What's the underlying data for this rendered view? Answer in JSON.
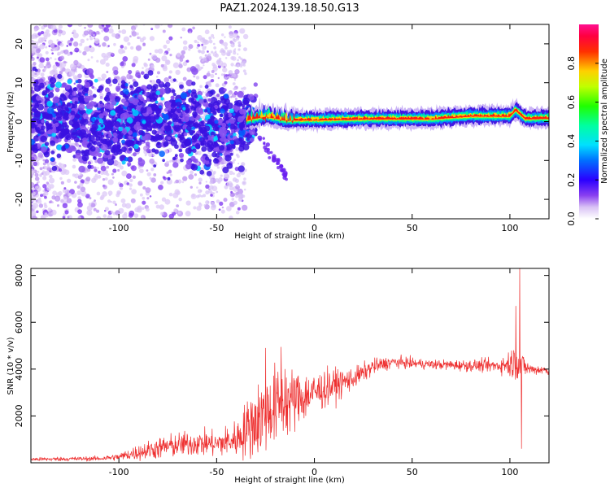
{
  "chart_data": [
    {
      "type": "heatmap",
      "title": "PAZ1.2024.139.18.50.G13",
      "xlabel": "Height of straight line (km)",
      "ylabel": "Frequency (Hz)",
      "xlim": [
        -145,
        120
      ],
      "ylim": [
        -25,
        25
      ],
      "x_ticks": [
        -100,
        -50,
        0,
        50,
        100
      ],
      "y_ticks": [
        -20,
        -10,
        0,
        10,
        20
      ],
      "colorbar": {
        "label": "Normalized spectral amplitude",
        "range": [
          0,
          1
        ],
        "ticks": [
          0.0,
          0.2,
          0.4,
          0.6,
          0.8
        ],
        "colormap": "rainbow"
      },
      "ridge": {
        "description_points": [
          {
            "x": -145,
            "y": 1.0
          },
          {
            "x": -120,
            "y": 0.5
          },
          {
            "x": -100,
            "y": 0.5
          },
          {
            "x": -85,
            "y": 1.5
          },
          {
            "x": -70,
            "y": 0.0
          },
          {
            "x": -55,
            "y": -1.5
          },
          {
            "x": -45,
            "y": -2.0
          },
          {
            "x": -35,
            "y": 0.5
          },
          {
            "x": -25,
            "y": 1.5
          },
          {
            "x": -15,
            "y": 0.5
          },
          {
            "x": 0,
            "y": 0.5
          },
          {
            "x": 30,
            "y": 0.8
          },
          {
            "x": 60,
            "y": 0.8
          },
          {
            "x": 80,
            "y": 1.5
          },
          {
            "x": 100,
            "y": 1.5
          },
          {
            "x": 103,
            "y": 3.0
          },
          {
            "x": 108,
            "y": 0.8
          },
          {
            "x": 120,
            "y": 1.0
          }
        ]
      }
    },
    {
      "type": "line",
      "xlabel": "Height of straight line (km)",
      "ylabel": "SNR (10 * v/v)",
      "xlim": [
        -145,
        120
      ],
      "ylim": [
        0,
        8300
      ],
      "x_ticks": [
        -100,
        -50,
        0,
        50,
        100
      ],
      "y_ticks": [
        2000,
        4000,
        6000,
        8000
      ],
      "series": [
        {
          "color": "#ee3030",
          "envelope": [
            {
              "x": -145,
              "mean": 150,
              "spread": 80
            },
            {
              "x": -110,
              "mean": 180,
              "spread": 100
            },
            {
              "x": -100,
              "mean": 250,
              "spread": 150
            },
            {
              "x": -90,
              "mean": 450,
              "spread": 350
            },
            {
              "x": -75,
              "mean": 700,
              "spread": 500
            },
            {
              "x": -60,
              "mean": 850,
              "spread": 550
            },
            {
              "x": -50,
              "mean": 800,
              "spread": 550
            },
            {
              "x": -40,
              "mean": 1000,
              "spread": 800
            },
            {
              "x": -30,
              "mean": 1800,
              "spread": 1600
            },
            {
              "x": -20,
              "mean": 2400,
              "spread": 1700
            },
            {
              "x": -10,
              "mean": 2700,
              "spread": 1300
            },
            {
              "x": 0,
              "mean": 3000,
              "spread": 900
            },
            {
              "x": 10,
              "mean": 3300,
              "spread": 700
            },
            {
              "x": 20,
              "mean": 3600,
              "spread": 450
            },
            {
              "x": 30,
              "mean": 4100,
              "spread": 350
            },
            {
              "x": 40,
              "mean": 4300,
              "spread": 250
            },
            {
              "x": 60,
              "mean": 4200,
              "spread": 200
            },
            {
              "x": 80,
              "mean": 4150,
              "spread": 250
            },
            {
              "x": 95,
              "mean": 4150,
              "spread": 300
            },
            {
              "x": 103,
              "mean": 4300,
              "spread": 800
            },
            {
              "x": 110,
              "mean": 4000,
              "spread": 250
            },
            {
              "x": 120,
              "mean": 3950,
              "spread": 200
            }
          ],
          "spikes": [
            {
              "x": -25,
              "value": 4900
            },
            {
              "x": -17,
              "value": 4950
            },
            {
              "x": -15,
              "value": 4000
            },
            {
              "x": 103,
              "value": 6700
            },
            {
              "x": 105,
              "value": 8300
            },
            {
              "x": 106,
              "value": 600
            }
          ]
        }
      ]
    }
  ],
  "colors": {
    "line": "#ee3030",
    "heat_low": "#c8a8f0",
    "heat_mid": "#3a10e0",
    "heat_high": "#ff1010"
  }
}
